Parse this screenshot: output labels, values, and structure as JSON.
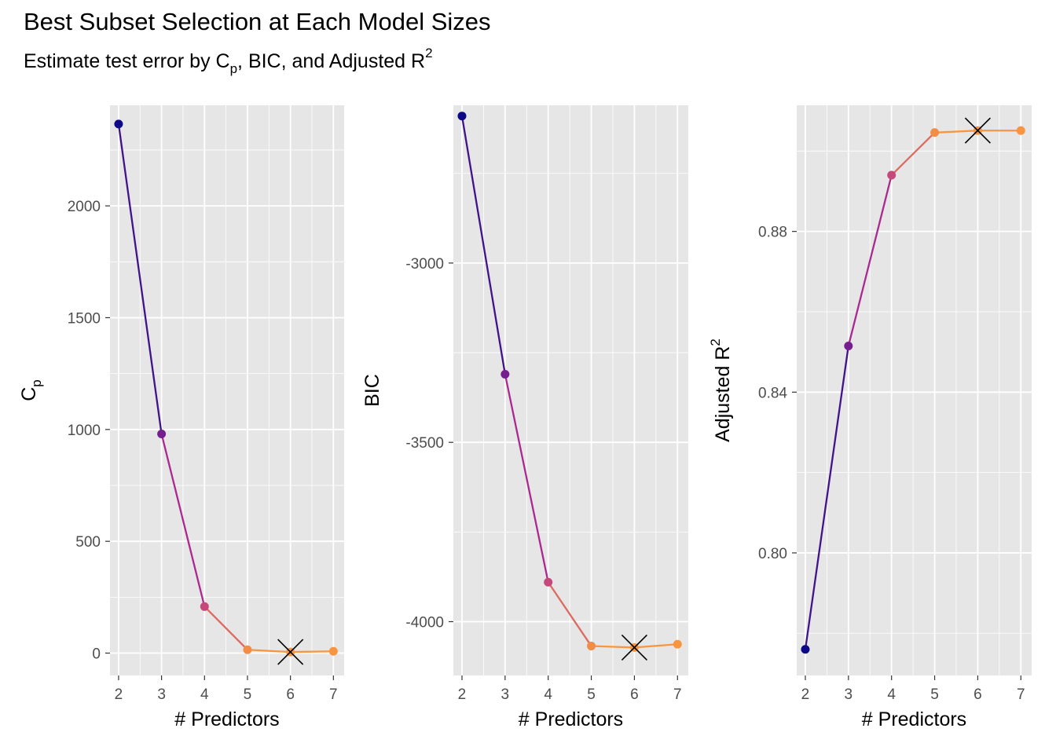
{
  "title": "Best Subset Selection at Each Model Sizes",
  "subtitle": {
    "prefix": "Estimate test error by C",
    "sub": "p",
    "middle": ", BIC, and Adjusted R",
    "sup": "2"
  },
  "palette": {
    "low": "#0d0887",
    "mid": "#b12a90",
    "high": "#f89540",
    "panel_bg": "#e6e6e6",
    "grid": "#ffffff",
    "point_mid": "#9c179e"
  },
  "chart_data": [
    {
      "type": "line",
      "xlabel": "# Predictors",
      "ylabel": {
        "main": "C",
        "sub": "p",
        "sup": ""
      },
      "x": [
        2,
        3,
        4,
        5,
        6,
        7
      ],
      "values": [
        2366,
        980,
        208,
        15,
        5,
        8
      ],
      "xlim": [
        1.8,
        7.25
      ],
      "ylim": [
        -100,
        2450
      ],
      "yticks": [
        0,
        500,
        1000,
        1500,
        2000
      ],
      "ytick_labels": [
        "0",
        "500",
        "1000",
        "1500",
        "2000"
      ],
      "xticks": [
        2,
        3,
        4,
        5,
        6,
        7
      ],
      "best": {
        "x": 6,
        "y": 5,
        "marker": "X"
      }
    },
    {
      "type": "line",
      "xlabel": "# Predictors",
      "ylabel": {
        "main": "BIC",
        "sub": "",
        "sup": ""
      },
      "x": [
        2,
        3,
        4,
        5,
        6,
        7
      ],
      "values": [
        -2590,
        -3310,
        -3890,
        -4068,
        -4072,
        -4063
      ],
      "xlim": [
        1.8,
        7.25
      ],
      "ylim": [
        -4150,
        -2560
      ],
      "yticks": [
        -4000,
        -3500,
        -3000
      ],
      "ytick_labels": [
        "-4000",
        "-3500",
        "-3000"
      ],
      "xticks": [
        2,
        3,
        4,
        5,
        6,
        7
      ],
      "best": {
        "x": 6,
        "y": -4072,
        "marker": "X"
      }
    },
    {
      "type": "line",
      "xlabel": "# Predictors",
      "ylabel": {
        "main": "Adjusted R",
        "sub": "",
        "sup": "2"
      },
      "x": [
        2,
        3,
        4,
        5,
        6,
        7
      ],
      "values": [
        0.776,
        0.8515,
        0.894,
        0.9046,
        0.9051,
        0.9051
      ],
      "xlim": [
        1.8,
        7.25
      ],
      "ylim": [
        0.7695,
        0.9114
      ],
      "yticks": [
        0.8,
        0.84,
        0.88
      ],
      "ytick_labels": [
        "0.80",
        "0.84",
        "0.88"
      ],
      "xticks": [
        2,
        3,
        4,
        5,
        6,
        7
      ],
      "best": {
        "x": 6,
        "y": 0.9051,
        "marker": "X"
      }
    }
  ]
}
